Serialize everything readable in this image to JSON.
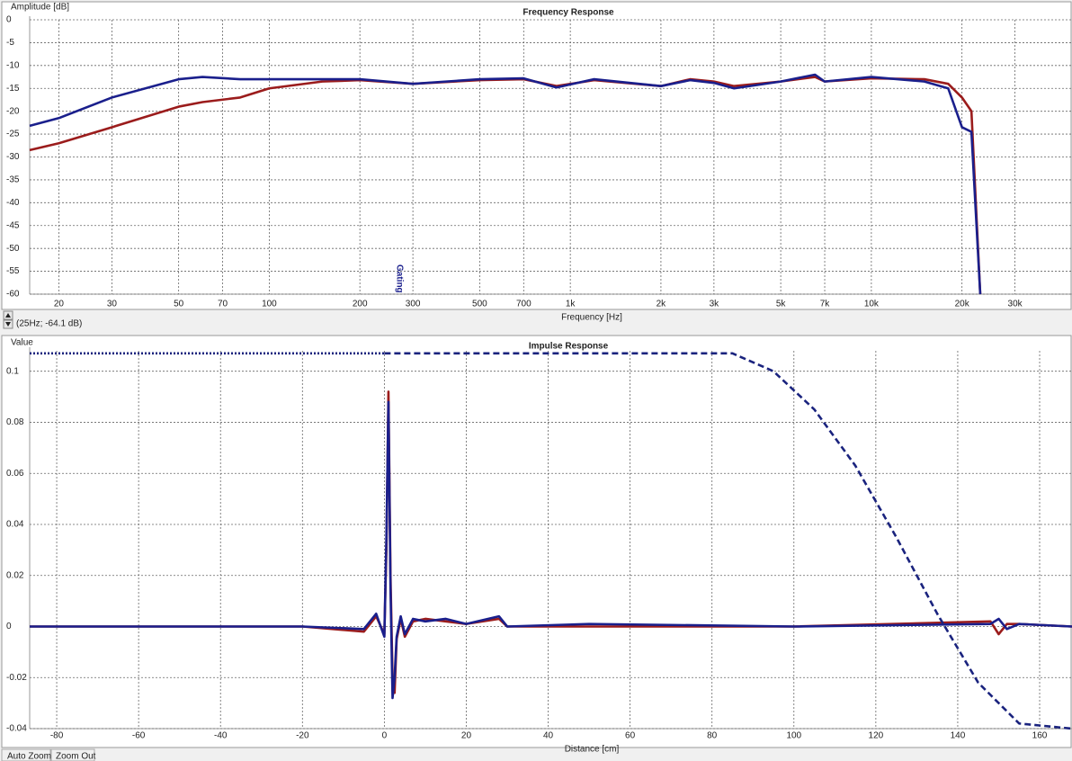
{
  "chart_data": [
    {
      "type": "line",
      "title": "Frequency Response",
      "ylabel": "Amplitude [dB]",
      "xlabel": "Frequency [Hz]",
      "log_x": true,
      "grid": true,
      "xlim": [
        16,
        46400
      ],
      "ylim": [
        -60,
        0
      ],
      "xticks": [
        20,
        30,
        50,
        70,
        100,
        200,
        300,
        500,
        700,
        {
          "value": 1000,
          "label": "1k"
        },
        {
          "value": 2000,
          "label": "2k"
        },
        {
          "value": 3000,
          "label": "3k"
        },
        {
          "value": 5000,
          "label": "5k"
        },
        {
          "value": 7000,
          "label": "7k"
        },
        {
          "value": 10000,
          "label": "10k"
        },
        {
          "value": 20000,
          "label": "20k"
        },
        {
          "value": 30000,
          "label": "30k"
        }
      ],
      "yticks": [
        0,
        -5,
        -10,
        -15,
        -20,
        -25,
        -30,
        -35,
        -40,
        -45,
        -50,
        -55,
        -60
      ],
      "x": [
        16,
        20,
        30,
        50,
        60,
        80,
        100,
        150,
        200,
        300,
        500,
        700,
        900,
        1200,
        2000,
        2500,
        3000,
        3500,
        5000,
        6500,
        7000,
        10000,
        15000,
        18000,
        20000,
        21500,
        23000
      ],
      "series": [
        {
          "color": "#9b1c1c",
          "values": [
            -28.5,
            -27,
            -23.5,
            -19,
            -18,
            -17,
            -15,
            -13.5,
            -13.2,
            -14,
            -13.2,
            -13,
            -14.5,
            -13.2,
            -14.5,
            -13,
            -13.5,
            -14.5,
            -13.5,
            -12.5,
            -13.5,
            -12.8,
            -13,
            -14,
            -17,
            -20,
            -60
          ]
        },
        {
          "color": "#1a1f8c",
          "values": [
            -23.2,
            -21.5,
            -17,
            -13,
            -12.5,
            -13,
            -13,
            -13,
            -13,
            -14,
            -13,
            -12.8,
            -14.8,
            -13,
            -14.5,
            -13.2,
            -13.8,
            -15,
            -13.5,
            -12,
            -13.5,
            -12.5,
            -13.5,
            -15,
            -23.5,
            -24.5,
            -60
          ]
        }
      ]
    },
    {
      "type": "line",
      "title": "Impulse Response",
      "ylabel": "Value",
      "xlabel": "Distance [cm]",
      "grid": true,
      "xlim": [
        -86.6,
        167.9
      ],
      "ylim": [
        -0.04,
        0.108
      ],
      "xticks": [
        -80,
        -60,
        -40,
        -20,
        0,
        20,
        40,
        60,
        80,
        100,
        120,
        140,
        160
      ],
      "yticks": [
        0.1,
        0.08,
        0.06,
        0.04,
        0.02,
        0,
        -0.02,
        -0.04
      ],
      "series": [
        {
          "color": "#9b1c1c",
          "style": "solid",
          "x": [
            -86.6,
            -20,
            -5,
            -2,
            0,
            0.5,
            1,
            1.5,
            2,
            2.5,
            3,
            4,
            5,
            7,
            10,
            15,
            20,
            28,
            30,
            50,
            100,
            148,
            150,
            152,
            155,
            167.9
          ],
          "values": [
            0,
            0,
            -0.002,
            0.004,
            -0.003,
            0.03,
            0.092,
            0.02,
            -0.02,
            -0.026,
            -0.005,
            0.003,
            -0.004,
            0.002,
            0.003,
            0.002,
            0.001,
            0.003,
            0,
            0,
            0,
            0.002,
            -0.003,
            0.001,
            0.001,
            0
          ]
        },
        {
          "color": "#1a1f8c",
          "style": "solid",
          "x": [
            -86.6,
            -20,
            -5,
            -2,
            0,
            0.5,
            1,
            1.5,
            2,
            2.5,
            3,
            4,
            5,
            7,
            10,
            15,
            20,
            28,
            30,
            50,
            100,
            148,
            150,
            152,
            155,
            167.9
          ],
          "values": [
            0,
            0,
            -0.001,
            0.005,
            -0.004,
            0.035,
            0.088,
            0.015,
            -0.028,
            -0.02,
            -0.004,
            0.004,
            -0.003,
            0.003,
            0.002,
            0.003,
            0.001,
            0.004,
            0,
            0.001,
            0,
            0.001,
            0.003,
            -0.001,
            0.001,
            0
          ]
        },
        {
          "color": "#1a237e",
          "style": "dotted",
          "x": [
            -86.6,
            0
          ],
          "values": [
            0.107,
            0.107
          ]
        },
        {
          "color": "#1a237e",
          "style": "dashed",
          "x": [
            0,
            85,
            95,
            105,
            115,
            125,
            135,
            145,
            155,
            167.9
          ],
          "values": [
            0.107,
            0.107,
            0.1,
            0.085,
            0.063,
            0.035,
            0.005,
            -0.022,
            -0.038,
            -0.04
          ]
        }
      ]
    }
  ],
  "ui": {
    "cursor_readout": "(25Hz; -64.1 dB)",
    "marker": "Gating",
    "buttons": [
      "Auto Zoom",
      "Zoom Out"
    ]
  }
}
